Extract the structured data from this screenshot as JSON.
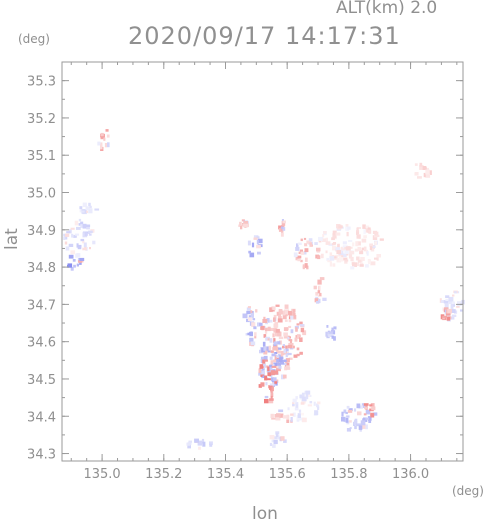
{
  "header": {
    "title": "2020/09/17 14:17:31",
    "altitude_label": "ALT(km) 2.0"
  },
  "axes": {
    "y_unit": "(deg)",
    "x_unit": "(deg)",
    "y_name": "lat",
    "x_name": "lon"
  },
  "chart_data": {
    "type": "heatmap",
    "title": "2020/09/17 14:17:31",
    "xlabel": "lon",
    "ylabel": "lat",
    "xlim": [
      134.87,
      136.17
    ],
    "ylim": [
      34.28,
      35.35
    ],
    "xticks": [
      135.0,
      135.2,
      135.4,
      135.6,
      135.8,
      136.0
    ],
    "xtick_labels": [
      "135.0",
      "135.2",
      "135.4",
      "135.6",
      "135.8",
      "136.0"
    ],
    "yticks": [
      34.3,
      34.4,
      34.5,
      34.6,
      34.7,
      34.8,
      34.9,
      35.0,
      35.1,
      35.2,
      35.3
    ],
    "ytick_labels": [
      "34.3",
      "34.4",
      "34.5",
      "34.6",
      "34.7",
      "34.8",
      "34.9",
      "35.0",
      "35.1",
      "35.2",
      "35.3"
    ],
    "grid": false,
    "colors": {
      "positive": "#f08080",
      "negative": "#8a8ff0",
      "neutral": "#e6e8fb",
      "axis": "#9a9a9a"
    },
    "echoes": [
      {
        "x": 134.92,
        "y": 34.88,
        "rx": 0.05,
        "ry": 0.05,
        "sign": -1,
        "level": 0.35
      },
      {
        "x": 134.95,
        "y": 34.96,
        "rx": 0.03,
        "ry": 0.015,
        "sign": -1,
        "level": 0.3
      },
      {
        "x": 134.9,
        "y": 34.82,
        "rx": 0.03,
        "ry": 0.02,
        "sign": -1,
        "level": 0.8
      },
      {
        "x": 135.0,
        "y": 35.15,
        "rx": 0.02,
        "ry": 0.03,
        "sign": 1,
        "level": 0.6
      },
      {
        "x": 136.03,
        "y": 35.06,
        "rx": 0.03,
        "ry": 0.025,
        "sign": 1,
        "level": 0.3
      },
      {
        "x": 135.8,
        "y": 34.86,
        "rx": 0.11,
        "ry": 0.06,
        "sign": 1,
        "level": 0.25
      },
      {
        "x": 135.66,
        "y": 34.84,
        "rx": 0.04,
        "ry": 0.04,
        "sign": 1,
        "level": 0.5
      },
      {
        "x": 135.58,
        "y": 34.62,
        "rx": 0.07,
        "ry": 0.09,
        "sign": 1,
        "level": 0.6
      },
      {
        "x": 135.55,
        "y": 34.55,
        "rx": 0.05,
        "ry": 0.07,
        "sign": -1,
        "level": 0.6
      },
      {
        "x": 135.53,
        "y": 34.5,
        "rx": 0.03,
        "ry": 0.06,
        "sign": 1,
        "level": 0.8
      },
      {
        "x": 135.65,
        "y": 34.43,
        "rx": 0.05,
        "ry": 0.04,
        "sign": -1,
        "level": 0.25
      },
      {
        "x": 135.82,
        "y": 34.4,
        "rx": 0.05,
        "ry": 0.04,
        "sign": -1,
        "level": 0.5
      },
      {
        "x": 135.86,
        "y": 34.42,
        "rx": 0.02,
        "ry": 0.02,
        "sign": 1,
        "level": 0.7
      },
      {
        "x": 136.13,
        "y": 34.7,
        "rx": 0.04,
        "ry": 0.04,
        "sign": -1,
        "level": 0.3
      },
      {
        "x": 136.11,
        "y": 34.68,
        "rx": 0.02,
        "ry": 0.015,
        "sign": 1,
        "level": 0.7
      },
      {
        "x": 135.31,
        "y": 34.33,
        "rx": 0.05,
        "ry": 0.012,
        "sign": -1,
        "level": 0.4
      },
      {
        "x": 135.48,
        "y": 34.65,
        "rx": 0.03,
        "ry": 0.05,
        "sign": -1,
        "level": 0.6
      },
      {
        "x": 135.7,
        "y": 34.74,
        "rx": 0.02,
        "ry": 0.04,
        "sign": 1,
        "level": 0.5
      },
      {
        "x": 135.74,
        "y": 34.63,
        "rx": 0.02,
        "ry": 0.02,
        "sign": -1,
        "level": 0.5
      },
      {
        "x": 135.45,
        "y": 34.92,
        "rx": 0.02,
        "ry": 0.015,
        "sign": 1,
        "level": 0.6
      },
      {
        "x": 135.58,
        "y": 34.91,
        "rx": 0.01,
        "ry": 0.02,
        "sign": 1,
        "level": 0.6
      },
      {
        "x": 135.49,
        "y": 34.86,
        "rx": 0.02,
        "ry": 0.03,
        "sign": -1,
        "level": 0.6
      },
      {
        "x": 135.58,
        "y": 34.4,
        "rx": 0.04,
        "ry": 0.02,
        "sign": 1,
        "level": 0.5
      },
      {
        "x": 135.56,
        "y": 34.34,
        "rx": 0.03,
        "ry": 0.02,
        "sign": -1,
        "level": 0.4
      }
    ]
  }
}
